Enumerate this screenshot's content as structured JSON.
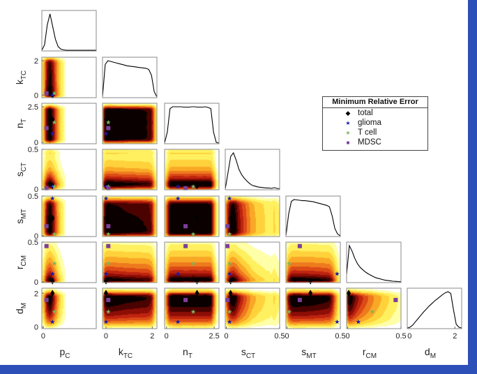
{
  "chart_data": {
    "type": "corner-plot",
    "params": [
      {
        "sym": "p",
        "sub": "C",
        "lim": [
          -0.02,
          0.8
        ],
        "ticks": [
          0
        ],
        "tick_labels": [
          "0"
        ]
      },
      {
        "sym": "k",
        "sub": "TC",
        "lim": [
          -0.15,
          2.2
        ],
        "ticks": [
          0,
          2
        ],
        "tick_labels": [
          "0",
          "2"
        ]
      },
      {
        "sym": "n",
        "sub": "T",
        "lim": [
          -0.1,
          2.75
        ],
        "ticks": [
          0,
          2.5
        ],
        "tick_labels": [
          "0",
          "2.5"
        ]
      },
      {
        "sym": "s",
        "sub": "CT",
        "lim": [
          -0.01,
          0.5
        ],
        "ticks": [
          0,
          0.5
        ],
        "tick_labels": [
          "0",
          "0.5"
        ]
      },
      {
        "sym": "s",
        "sub": "MT",
        "lim": [
          -0.01,
          0.5
        ],
        "ticks": [
          0,
          0.5
        ],
        "tick_labels": [
          "0",
          "0.5"
        ]
      },
      {
        "sym": "r",
        "sub": "CM",
        "lim": [
          -0.01,
          0.5
        ],
        "ticks": [
          0,
          0.5
        ],
        "tick_labels": [
          "0",
          "0.5"
        ]
      },
      {
        "sym": "d",
        "sub": "M",
        "lim": [
          -0.1,
          2.3
        ],
        "ticks": [
          0,
          2
        ],
        "tick_labels": [
          "0",
          "2"
        ]
      }
    ],
    "marginal_density": [
      [
        0,
        0.15,
        0.7,
        1,
        0.65,
        0.3,
        0.1,
        0.03,
        0.01,
        0,
        0,
        0,
        0,
        0,
        0,
        0,
        0,
        0,
        0,
        0,
        0
      ],
      [
        0,
        0.9,
        1,
        0.98,
        0.96,
        0.94,
        0.92,
        0.9,
        0.88,
        0.86,
        0.85,
        0.84,
        0.83,
        0.82,
        0.81,
        0.8,
        0.79,
        0.76,
        0.6,
        0.15,
        0
      ],
      [
        0,
        0.3,
        0.95,
        1,
        1,
        1,
        1,
        0.99,
        0.99,
        0.99,
        1,
        1,
        0.99,
        0.99,
        0.99,
        1,
        0.98,
        0.95,
        0.3,
        0.02,
        0
      ],
      [
        0,
        0.45,
        0.9,
        1,
        0.8,
        0.55,
        0.4,
        0.3,
        0.22,
        0.15,
        0.1,
        0.08,
        0.06,
        0.05,
        0.04,
        0.03,
        0.03,
        0.02,
        0.04,
        0.02,
        0.01
      ],
      [
        0,
        0.6,
        0.95,
        1,
        0.99,
        0.98,
        0.97,
        0.97,
        0.96,
        0.95,
        0.94,
        0.92,
        0.9,
        0.88,
        0.86,
        0.84,
        0.8,
        0.55,
        0.2,
        0.05,
        0
      ],
      [
        0.2,
        1,
        0.85,
        0.65,
        0.5,
        0.4,
        0.33,
        0.27,
        0.22,
        0.18,
        0.14,
        0.11,
        0.09,
        0.07,
        0.05,
        0.04,
        0.03,
        0.02,
        0.015,
        0.01,
        0.005
      ],
      [
        0,
        0.02,
        0.08,
        0.17,
        0.26,
        0.35,
        0.44,
        0.52,
        0.6,
        0.67,
        0.74,
        0.8,
        0.86,
        0.92,
        0.97,
        1,
        0.95,
        0.5,
        0.1,
        0.02,
        0
      ]
    ],
    "best_points": [
      {
        "name": "total",
        "color": "#000000",
        "marker": "diamond",
        "values": [
          0.14,
          0.0,
          1.6,
          0.04,
          0.22,
          0.01,
          2.0
        ]
      },
      {
        "name": "glioma",
        "color": "#1a1aa8",
        "marker": "star",
        "values": [
          0.14,
          0.0,
          0.6,
          0.03,
          0.47,
          0.1,
          0.3
        ]
      },
      {
        "name": "T cell",
        "color": "#7fb35a",
        "marker": "star",
        "values": [
          0.17,
          0.1,
          1.4,
          0.03,
          0.02,
          0.23,
          0.9
        ]
      },
      {
        "name": "MDSC",
        "color": "#7d3f98",
        "marker": "square",
        "values": [
          0.05,
          0.1,
          1.0,
          0.01,
          0.12,
          0.45,
          1.6
        ]
      }
    ],
    "legend": {
      "title": "Minimum Relative Error",
      "entries": [
        "total",
        "glioma",
        "T cell",
        "MDSC"
      ],
      "placement": "right"
    },
    "colormap": [
      "#ffffa8",
      "#fff060",
      "#ffd23c",
      "#f9a826",
      "#ee7a1e",
      "#dc4a16",
      "#bf2410",
      "#8c0e06",
      "#4a0300",
      "#0a0000"
    ]
  }
}
